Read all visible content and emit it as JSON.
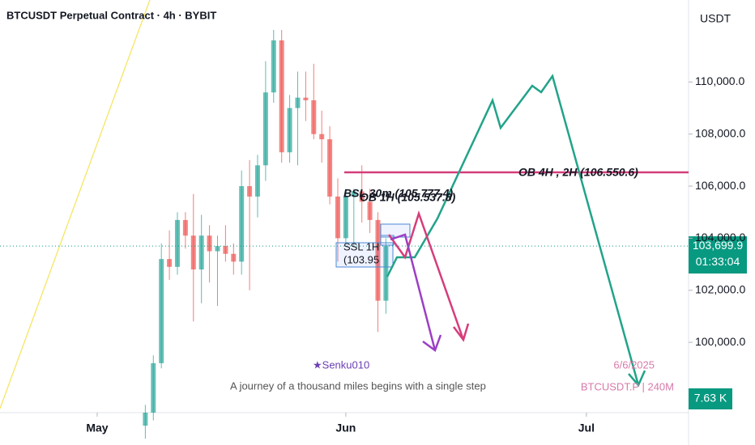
{
  "chart_data": {
    "type": "candlestick",
    "title": "BTCUSDT Perpetual Contract · 4h · BYBIT",
    "currency": "USDT",
    "x": [
      6,
      7,
      8,
      9,
      10,
      11,
      12,
      13,
      14,
      15,
      16,
      17,
      18,
      19,
      20,
      21,
      22,
      23,
      24,
      25,
      26,
      27,
      28,
      29,
      30,
      31,
      32,
      33,
      34,
      35,
      36
    ],
    "open": [
      96800,
      97300,
      99200,
      103200,
      102900,
      104700,
      104100,
      102800,
      104100,
      103500,
      103700,
      103400,
      103100,
      106000,
      105600,
      106800,
      109600,
      111600,
      107300,
      109000,
      109400,
      109300,
      108000,
      107800,
      105600,
      104000,
      105600,
      105800,
      105400,
      104700,
      101600
    ],
    "high": [
      97600,
      99500,
      103800,
      104300,
      105000,
      105000,
      105700,
      104900,
      104500,
      104100,
      104500,
      103800,
      106600,
      107000,
      107200,
      110800,
      112000,
      112000,
      109500,
      110400,
      110400,
      110700,
      108900,
      108300,
      106300,
      105900,
      105900,
      106800,
      105900,
      105000,
      104000
    ],
    "low": [
      96300,
      97000,
      99000,
      102400,
      102600,
      103600,
      100800,
      101500,
      102300,
      101400,
      103100,
      102600,
      102600,
      102000,
      104800,
      106200,
      109200,
      106900,
      106900,
      106800,
      108500,
      107800,
      106900,
      105300,
      103100,
      103800,
      103700,
      104600,
      104200,
      100400,
      101100
    ],
    "close": [
      97300,
      99200,
      103200,
      102900,
      104700,
      104100,
      102800,
      104100,
      103500,
      103700,
      103400,
      103100,
      106000,
      105600,
      106800,
      109600,
      111600,
      107300,
      109000,
      109400,
      109300,
      108000,
      107800,
      105600,
      104000,
      105600,
      105800,
      105400,
      104700,
      101600,
      103700
    ],
    "up_color": "#26a69a",
    "down_color": "#ef5350",
    "xlim": [
      -12.12,
      73.74
    ],
    "xticks": [
      {
        "value": 0,
        "label": "May"
      },
      {
        "value": 31,
        "label": "Jun"
      },
      {
        "value": 61,
        "label": "Jul"
      }
    ],
    "ylim": [
      97300,
      113150
    ],
    "yticks": [
      {
        "value": 100000,
        "label": "100,000.0"
      },
      {
        "value": 102000,
        "label": "102,000.0"
      },
      {
        "value": 104000,
        "label": "104,000.0"
      },
      {
        "value": 106000,
        "label": "106,000.0"
      },
      {
        "value": 108000,
        "label": "108,000.0"
      },
      {
        "value": 110000,
        "label": "110,000.0"
      }
    ],
    "last_price": {
      "value": 103699.9,
      "label": "103,699.9"
    },
    "countdown": "01:33:04",
    "volume_label": "7.63 K",
    "annotations": [
      "OB 4H , 2H (106.550.6)",
      "BSL 30m (105.777.4)",
      "OB 1H (105.537.8)",
      "SSL 1H",
      "(103.95",
      "★Senku010",
      "A journey of a thousand miles begins with a single step",
      "6/6/2025",
      "BTCUSDT.P | 240M"
    ]
  }
}
